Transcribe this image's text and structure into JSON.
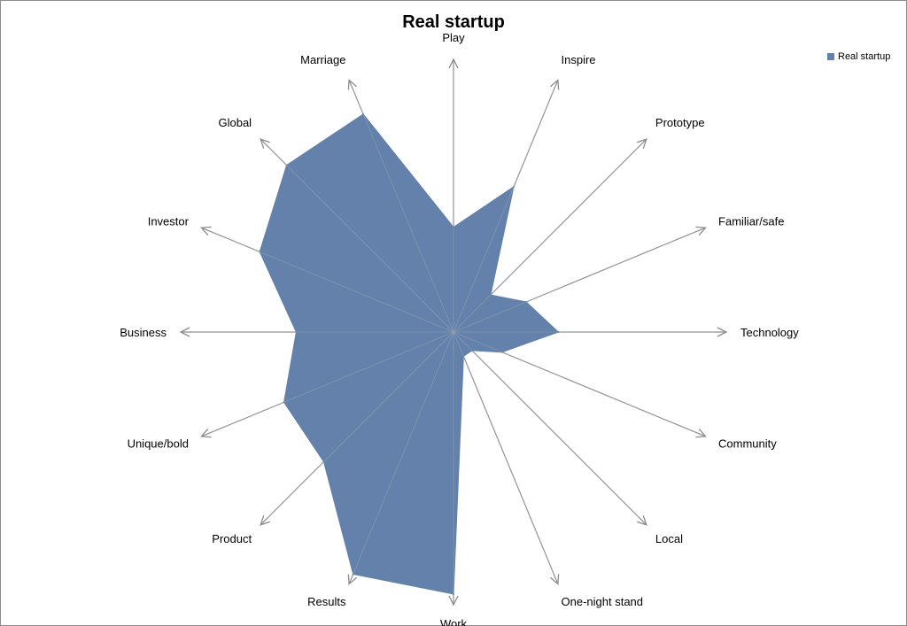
{
  "chart_data": {
    "type": "radar",
    "title": "Real startup",
    "categories": [
      "Play",
      "Inspire",
      "Prototype",
      "Familiar/safe",
      "Technology",
      "Community",
      "Local",
      "One-night stand",
      "Work",
      "Results",
      "Product",
      "Unique/bold",
      "Business",
      "Investor",
      "Global",
      "Marriage"
    ],
    "series": [
      {
        "name": "Real startup",
        "color": "#6381aa",
        "values": [
          4,
          6,
          2,
          3,
          4,
          2,
          1,
          1,
          10,
          10,
          7,
          7,
          6,
          8,
          9,
          9
        ]
      }
    ],
    "scale_max": 10,
    "legend_position": "top-right",
    "grid": false
  }
}
